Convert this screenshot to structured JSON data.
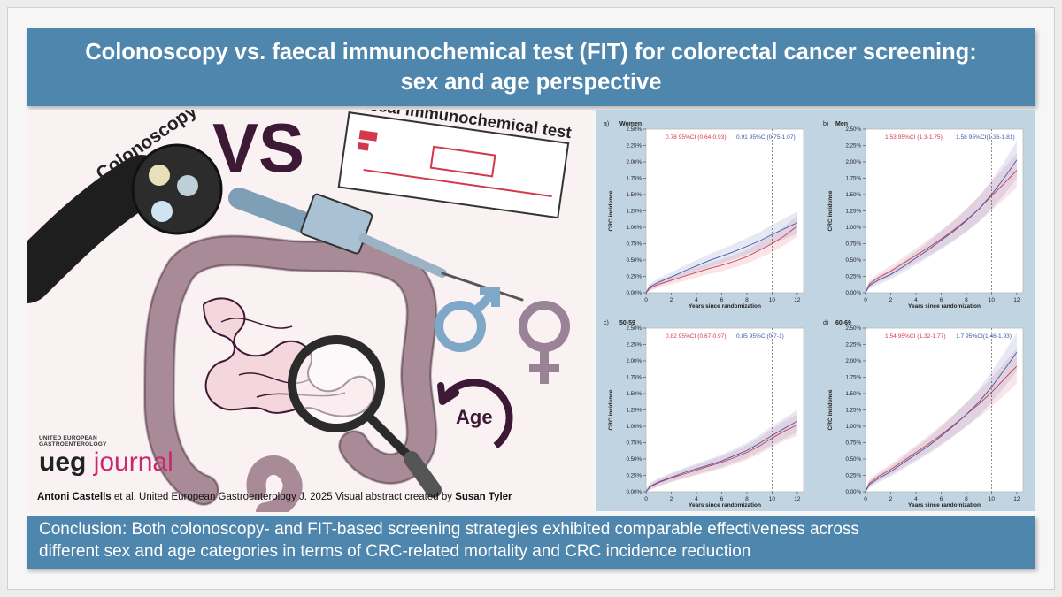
{
  "title": {
    "line1": "Colonoscopy vs. faecal immunochemical test (FIT) for colorectal cancer screening:",
    "line2": "sex and age perspective"
  },
  "illustration": {
    "vs": "VS",
    "colonoscopy_label": "Colonoscopy",
    "fit_label": "faecal immunochemical test",
    "age_label": "Age"
  },
  "logo": {
    "small_line1": "UNITED EUROPEAN",
    "small_line2": "GASTROENTEROLOGY",
    "word1": "ueg",
    "word2": "journal"
  },
  "credit": {
    "authors": "Antoni Castells",
    "citation": " et al. United European Gastroenterology J. 2025 Visual abstract created by ",
    "artist": "Susan Tyler"
  },
  "conclusion": {
    "line1": "Conclusion: Both colonoscopy- and FIT-based screening strategies exhibited comparable effectiveness across",
    "line2": "different sex and age categories in terms of CRC-related mortality and CRC incidence reduction"
  },
  "colors": {
    "red": "#d3394b",
    "blue": "#3f58a7",
    "panel_bg": "#c1d4e1",
    "title_bg": "#4f86ad",
    "colon": "#9a7c8a",
    "dark": "#3c1a35"
  },
  "chart_data": [
    {
      "type": "line",
      "panel": "a)",
      "title": "Women",
      "xlabel": "Years since randomization",
      "ylabel": "CRC incidence",
      "xlim": [
        0,
        12.5
      ],
      "ylim": [
        0,
        0.025
      ],
      "x_ticks": [
        "0",
        "2",
        "4",
        "6",
        "8",
        "10",
        "12"
      ],
      "y_ticks": [
        "0.00%",
        "0.25%",
        "0.50%",
        "0.75%",
        "1.00%",
        "1.25%",
        "1.50%",
        "1.75%",
        "2.00%",
        "2.25%",
        "2.50%"
      ],
      "reference_line_x": 10,
      "annotations": [
        "0.78 95%CI (0.64-0.93)",
        "0.91 95%CI(0.75-1.07)"
      ],
      "series": [
        {
          "color": "red",
          "x": [
            0,
            0.3,
            1,
            2,
            3,
            4,
            5,
            6,
            7,
            8,
            9,
            10,
            11,
            12
          ],
          "y": [
            0,
            0.0007,
            0.0013,
            0.0019,
            0.0025,
            0.0031,
            0.0037,
            0.0042,
            0.0048,
            0.0055,
            0.0065,
            0.0075,
            0.0087,
            0.0102
          ]
        },
        {
          "color": "blue",
          "x": [
            0,
            0.3,
            1,
            2,
            3,
            4,
            5,
            6,
            7,
            8,
            9,
            10,
            11,
            12
          ],
          "y": [
            0,
            0.0009,
            0.0016,
            0.0024,
            0.0033,
            0.0041,
            0.0049,
            0.0056,
            0.0063,
            0.0071,
            0.0079,
            0.0089,
            0.0098,
            0.0107
          ]
        }
      ]
    },
    {
      "type": "line",
      "panel": "b)",
      "title": "Men",
      "xlabel": "Years since randomization",
      "ylabel": "CRC incidence",
      "xlim": [
        0,
        12.5
      ],
      "ylim": [
        0,
        0.025
      ],
      "x_ticks": [
        "0",
        "2",
        "4",
        "6",
        "8",
        "10",
        "12"
      ],
      "y_ticks": [
        "0.00%",
        "0.25%",
        "0.50%",
        "0.75%",
        "1.00%",
        "1.25%",
        "1.50%",
        "1.75%",
        "2.00%",
        "2.25%",
        "2.50%"
      ],
      "reference_line_x": 10,
      "annotations": [
        "1.53 95%CI (1.3-1.75)",
        "1.58 95%CI(1.36-1.81)"
      ],
      "series": [
        {
          "color": "red",
          "x": [
            0,
            0.3,
            1,
            2,
            3,
            4,
            5,
            6,
            7,
            8,
            9,
            10,
            11,
            12
          ],
          "y": [
            0,
            0.0013,
            0.0023,
            0.0033,
            0.0045,
            0.0057,
            0.0069,
            0.0082,
            0.0096,
            0.0111,
            0.0128,
            0.0148,
            0.0167,
            0.0187
          ]
        },
        {
          "color": "blue",
          "x": [
            0,
            0.3,
            1,
            2,
            3,
            4,
            5,
            6,
            7,
            8,
            9,
            10,
            11,
            12
          ],
          "y": [
            0,
            0.0011,
            0.0019,
            0.0028,
            0.004,
            0.0053,
            0.0066,
            0.008,
            0.0094,
            0.011,
            0.0128,
            0.015,
            0.0175,
            0.0203
          ]
        }
      ]
    },
    {
      "type": "line",
      "panel": "c)",
      "title": "50-59",
      "xlabel": "Years since randomization",
      "ylabel": "CRC incidence",
      "xlim": [
        0,
        12.5
      ],
      "ylim": [
        0,
        0.025
      ],
      "x_ticks": [
        "0",
        "2",
        "4",
        "6",
        "8",
        "10",
        "12"
      ],
      "y_ticks": [
        "0.00%",
        "0.25%",
        "0.50%",
        "0.75%",
        "1.00%",
        "1.25%",
        "1.50%",
        "1.75%",
        "2.00%",
        "2.25%",
        "2.50%"
      ],
      "reference_line_x": 10,
      "annotations": [
        "0.82 95%CI (0.67-0.97)",
        "0.85 95%CI(0.7-1)"
      ],
      "series": [
        {
          "color": "red",
          "x": [
            0,
            0.3,
            1,
            2,
            3,
            4,
            5,
            6,
            7,
            8,
            9,
            10,
            11,
            12
          ],
          "y": [
            0,
            0.0007,
            0.0014,
            0.0021,
            0.0027,
            0.0033,
            0.0039,
            0.0045,
            0.0052,
            0.006,
            0.007,
            0.0082,
            0.0093,
            0.0102
          ]
        },
        {
          "color": "blue",
          "x": [
            0,
            0.3,
            1,
            2,
            3,
            4,
            5,
            6,
            7,
            8,
            9,
            10,
            11,
            12
          ],
          "y": [
            0,
            0.0008,
            0.0015,
            0.0022,
            0.0029,
            0.0035,
            0.0041,
            0.0047,
            0.0055,
            0.0063,
            0.0074,
            0.0086,
            0.0097,
            0.0108
          ]
        }
      ]
    },
    {
      "type": "line",
      "panel": "d)",
      "title": "60-69",
      "xlabel": "Years since randomization",
      "ylabel": "CRC incidence",
      "xlim": [
        0,
        12.5
      ],
      "ylim": [
        0,
        0.025
      ],
      "x_ticks": [
        "0",
        "2",
        "4",
        "6",
        "8",
        "10",
        "12"
      ],
      "y_ticks": [
        "0.00%",
        "0.25%",
        "0.50%",
        "0.75%",
        "1.00%",
        "1.25%",
        "1.50%",
        "1.75%",
        "2.00%",
        "2.25%",
        "2.50%"
      ],
      "reference_line_x": 10,
      "annotations": [
        "1.54 95%CI (1.32-1.77)",
        "1.7 95%CI(1.46-1.93)"
      ],
      "series": [
        {
          "color": "red",
          "x": [
            0,
            0.3,
            1,
            2,
            3,
            4,
            5,
            6,
            7,
            8,
            9,
            10,
            11,
            12
          ],
          "y": [
            0,
            0.0013,
            0.0023,
            0.0034,
            0.0047,
            0.006,
            0.0073,
            0.0087,
            0.0102,
            0.0118,
            0.0134,
            0.0152,
            0.0172,
            0.0192
          ]
        },
        {
          "color": "blue",
          "x": [
            0,
            0.3,
            1,
            2,
            3,
            4,
            5,
            6,
            7,
            8,
            9,
            10,
            11,
            12
          ],
          "y": [
            0,
            0.0011,
            0.002,
            0.0031,
            0.0044,
            0.0057,
            0.007,
            0.0085,
            0.0101,
            0.0118,
            0.0137,
            0.016,
            0.0186,
            0.0213
          ]
        }
      ]
    }
  ]
}
